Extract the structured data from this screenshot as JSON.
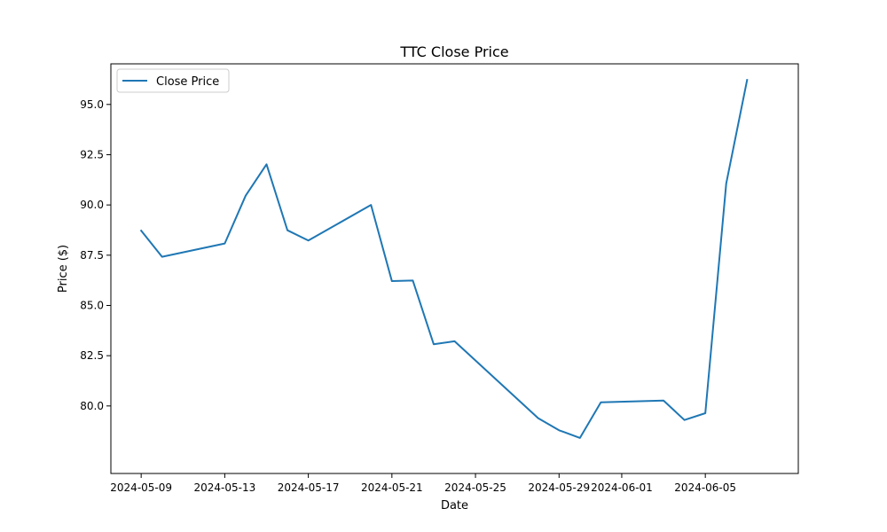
{
  "chart_data": {
    "type": "line",
    "title": "TTC Close Price",
    "xlabel": "Date",
    "ylabel": "Price ($)",
    "x_ticks": [
      "2024-05-09",
      "2024-05-13",
      "2024-05-17",
      "2024-05-21",
      "2024-05-25",
      "2024-05-29",
      "2024-06-01",
      "2024-06-05"
    ],
    "y_ticks": [
      "80.0",
      "82.5",
      "85.0",
      "87.5",
      "90.0",
      "92.5",
      "95.0"
    ],
    "xlim": [
      "2024-05-07.55",
      "2024-06-09.45"
    ],
    "ylim": [
      76.64,
      97.02
    ],
    "grid": false,
    "legend_position": "top-left",
    "series": [
      {
        "name": "Close Price",
        "color": "#1f77b4",
        "x": [
          "2024-05-09",
          "2024-05-10",
          "2024-05-13",
          "2024-05-14",
          "2024-05-15",
          "2024-05-16",
          "2024-05-17",
          "2024-05-20",
          "2024-05-21",
          "2024-05-22",
          "2024-05-23",
          "2024-05-24",
          "2024-05-28",
          "2024-05-29",
          "2024-05-30",
          "2024-05-31",
          "2024-06-03",
          "2024-06-04",
          "2024-06-05",
          "2024-06-06",
          "2024-06-07"
        ],
        "y": [
          88.72,
          87.42,
          88.08,
          90.46,
          92.02,
          88.74,
          88.23,
          90.0,
          86.21,
          86.24,
          83.07,
          83.22,
          79.39,
          78.79,
          78.41,
          80.18,
          80.27,
          79.3,
          79.64,
          91.06,
          96.22
        ]
      }
    ]
  }
}
